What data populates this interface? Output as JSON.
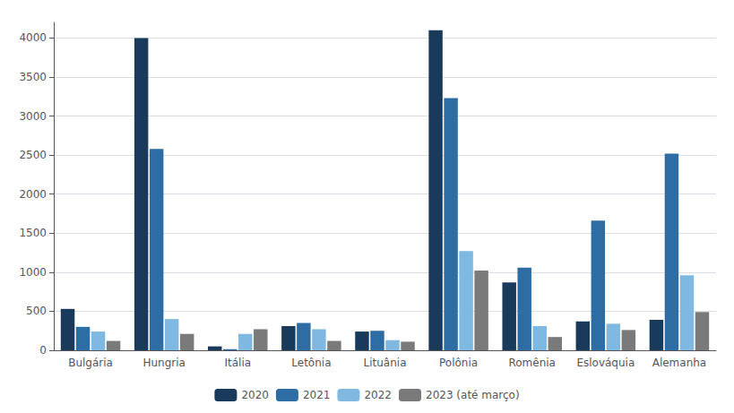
{
  "chart_data": {
    "type": "bar",
    "categories": [
      "Bulgária",
      "Hungria",
      "Itália",
      "Letônia",
      "Lituânia",
      "Polônia",
      "Romênia",
      "Eslováquia",
      "Alemanha"
    ],
    "series": [
      {
        "name": "2020",
        "color": "#1a3a5c",
        "values": [
          530,
          4000,
          50,
          310,
          240,
          4100,
          870,
          370,
          390
        ]
      },
      {
        "name": "2021",
        "color": "#2e6da4",
        "values": [
          300,
          2580,
          15,
          350,
          250,
          3230,
          1060,
          1660,
          2520
        ]
      },
      {
        "name": "2022",
        "color": "#7fb8e0",
        "values": [
          240,
          400,
          210,
          270,
          130,
          1270,
          310,
          340,
          960
        ]
      },
      {
        "name": "2023 (até março)",
        "color": "#7a7a7a",
        "values": [
          120,
          210,
          270,
          120,
          110,
          1020,
          170,
          260,
          490
        ]
      }
    ],
    "ylim": [
      0,
      4200
    ],
    "yticks": [
      0,
      500,
      1000,
      1500,
      2000,
      2500,
      3000,
      3500,
      4000
    ],
    "grid": true,
    "legend": "bottom"
  }
}
